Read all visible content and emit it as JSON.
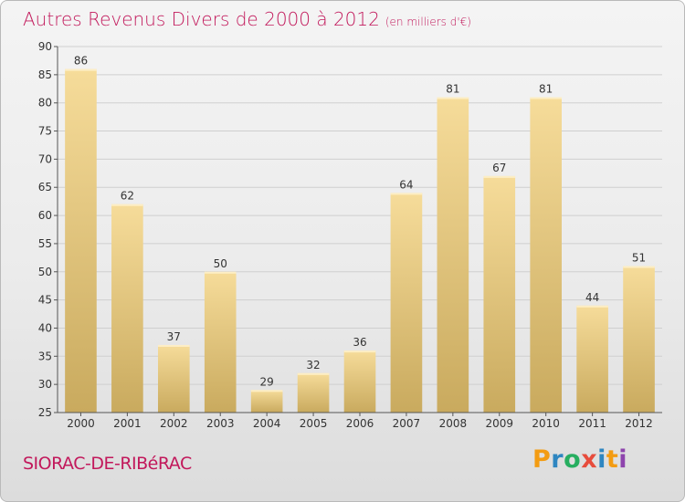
{
  "header": {
    "title": "Autres Revenus Divers de 2000 à 2012",
    "unit": "(en milliers d'€)"
  },
  "footer": {
    "city": "SIORAC-DE-RIBéRAC",
    "logo": "Proxiti",
    "logo_colors": [
      "#f39c12",
      "#2e86c1",
      "#27ae60",
      "#e74c3c",
      "#2e86c1",
      "#f39c12",
      "#8e44ad"
    ]
  },
  "colors": {
    "bar_light": "#f6dc9a",
    "bar_dark": "#c9aa5e",
    "grid": "#cfcfcf",
    "title": "#c2185b"
  },
  "chart_data": {
    "type": "bar",
    "title": "Autres Revenus Divers de 2000 à 2012",
    "subtitle": "(en milliers d'€)",
    "categories": [
      "2000",
      "2001",
      "2002",
      "2003",
      "2004",
      "2005",
      "2006",
      "2007",
      "2008",
      "2009",
      "2010",
      "2011",
      "2012"
    ],
    "values": [
      86,
      62,
      37,
      50,
      29,
      32,
      36,
      64,
      81,
      67,
      81,
      44,
      51
    ],
    "ylim": [
      25,
      90
    ],
    "yticks": [
      25,
      30,
      35,
      40,
      45,
      50,
      55,
      60,
      65,
      70,
      75,
      80,
      85,
      90
    ],
    "grid": true,
    "data_labels": true
  }
}
